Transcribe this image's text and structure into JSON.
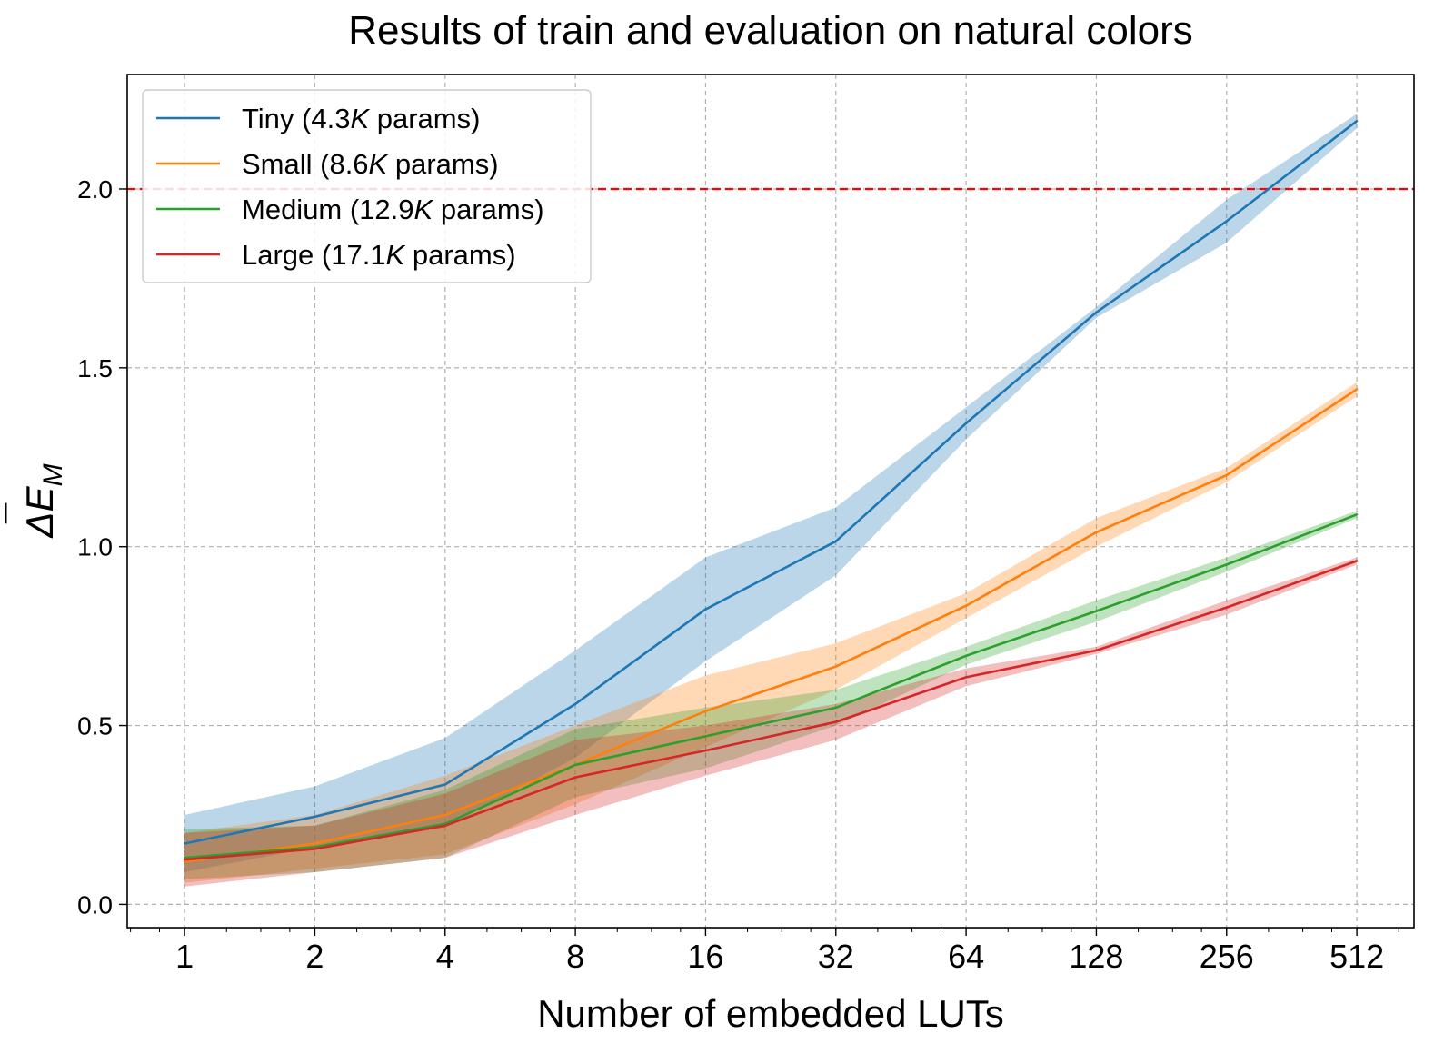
{
  "chart_data": {
    "type": "line",
    "title": "Results of train and evaluation on natural colors",
    "xlabel": "Number of embedded LUTs",
    "ylabel": "ΔE",
    "ylabel_bar": "¯",
    "ylabel_sub": "M",
    "x_scale": "log2",
    "x": [
      1,
      2,
      4,
      8,
      16,
      32,
      64,
      128,
      256,
      512
    ],
    "x_tick_labels": [
      "1",
      "2",
      "4",
      "8",
      "16",
      "32",
      "64",
      "128",
      "256",
      "512"
    ],
    "y_ticks": [
      0.0,
      0.5,
      1.0,
      1.5,
      2.0
    ],
    "y_tick_labels": [
      "0.0",
      "0.5",
      "1.0",
      "1.5",
      "2.0"
    ],
    "xlim": [
      0.737,
      694
    ],
    "ylim": [
      -0.065,
      2.32
    ],
    "grid": true,
    "legend_position": "top-left",
    "reference_line": {
      "y": 2.0,
      "color": "#ff0000",
      "style": "dashed"
    },
    "series": [
      {
        "name": "Tiny (4.3K params)",
        "prefix": "Tiny (4.3",
        "italic": "K",
        "suffix": " params)",
        "color": "#1f77b4",
        "values": [
          0.17,
          0.245,
          0.335,
          0.56,
          0.825,
          1.015,
          1.345,
          1.655,
          1.91,
          2.19
        ],
        "lower": [
          0.09,
          0.16,
          0.215,
          0.41,
          0.68,
          0.92,
          1.3,
          1.64,
          1.85,
          2.17
        ],
        "upper": [
          0.25,
          0.33,
          0.465,
          0.71,
          0.97,
          1.11,
          1.39,
          1.67,
          1.97,
          2.21
        ]
      },
      {
        "name": "Small (8.6K params)",
        "prefix": "Small (8.6",
        "italic": "K",
        "suffix": " params)",
        "color": "#ff7f0e",
        "values": [
          0.12,
          0.17,
          0.25,
          0.39,
          0.54,
          0.665,
          0.835,
          1.04,
          1.2,
          1.44
        ],
        "lower": [
          0.06,
          0.1,
          0.14,
          0.28,
          0.44,
          0.6,
          0.8,
          1.0,
          1.18,
          1.42
        ],
        "upper": [
          0.2,
          0.25,
          0.36,
          0.5,
          0.64,
          0.73,
          0.87,
          1.08,
          1.22,
          1.46
        ]
      },
      {
        "name": "Medium (12.9K params)",
        "prefix": "Medium (12.9",
        "italic": "K",
        "suffix": " params)",
        "color": "#2ca02c",
        "values": [
          0.13,
          0.16,
          0.225,
          0.39,
          0.47,
          0.55,
          0.695,
          0.82,
          0.95,
          1.09
        ],
        "lower": [
          0.07,
          0.09,
          0.13,
          0.3,
          0.38,
          0.5,
          0.67,
          0.79,
          0.93,
          1.08
        ],
        "upper": [
          0.21,
          0.22,
          0.32,
          0.49,
          0.55,
          0.6,
          0.72,
          0.85,
          0.97,
          1.1
        ]
      },
      {
        "name": "Large (17.1K params)",
        "prefix": "Large (17.1",
        "italic": "K",
        "suffix": " params)",
        "color": "#d62728",
        "values": [
          0.125,
          0.155,
          0.22,
          0.355,
          0.43,
          0.51,
          0.635,
          0.71,
          0.83,
          0.96
        ],
        "lower": [
          0.05,
          0.09,
          0.13,
          0.25,
          0.36,
          0.46,
          0.61,
          0.7,
          0.81,
          0.95
        ],
        "upper": [
          0.2,
          0.22,
          0.31,
          0.46,
          0.5,
          0.56,
          0.66,
          0.72,
          0.85,
          0.97
        ]
      }
    ]
  }
}
